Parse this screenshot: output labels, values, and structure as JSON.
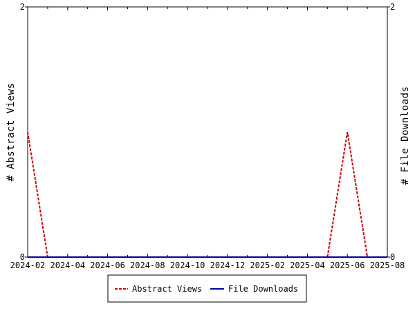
{
  "chart_data": {
    "type": "line",
    "title": "",
    "xlabel": "",
    "ylabel": "# Abstract Views",
    "y2label": "# File Downloads",
    "x_ticks": [
      "2024-02",
      "2024-04",
      "2024-06",
      "2024-08",
      "2024-10",
      "2024-12",
      "2025-02",
      "2025-04",
      "2025-06",
      "2025-08"
    ],
    "y_ticks": [
      "0",
      "2"
    ],
    "y2_ticks": [
      "0",
      "2"
    ],
    "ylim": [
      0,
      2
    ],
    "y2lim": [
      0,
      2
    ],
    "grid": false,
    "legend_position": "bottom",
    "x": [
      "2024-02",
      "2024-03",
      "2024-04",
      "2024-05",
      "2024-06",
      "2024-07",
      "2024-08",
      "2024-09",
      "2024-10",
      "2024-11",
      "2024-12",
      "2025-01",
      "2025-02",
      "2025-03",
      "2025-04",
      "2025-05",
      "2025-06",
      "2025-07",
      "2025-08"
    ],
    "series": [
      {
        "name": "Abstract Views",
        "color": "#cc0000",
        "style": "dashed",
        "axis": "left",
        "values": [
          1,
          0,
          0,
          0,
          0,
          0,
          0,
          0,
          0,
          0,
          0,
          0,
          0,
          0,
          0,
          0,
          1,
          0,
          0
        ]
      },
      {
        "name": "File Downloads",
        "color": "#000099",
        "style": "solid",
        "axis": "right",
        "values": [
          0,
          0,
          0,
          0,
          0,
          0,
          0,
          0,
          0,
          0,
          0,
          0,
          0,
          0,
          0,
          0,
          0,
          0,
          0
        ]
      }
    ]
  }
}
